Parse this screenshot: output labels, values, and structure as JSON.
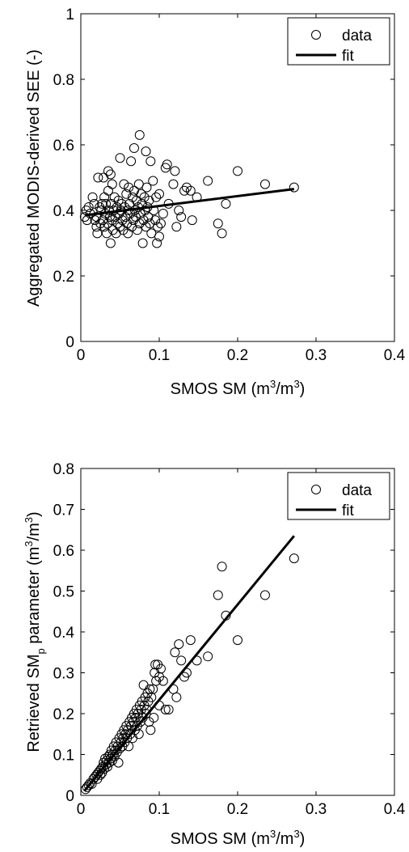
{
  "chart_data": [
    {
      "type": "scatter",
      "xlabel": "SMOS SM (m3/m3)",
      "ylabel": "Aggregated MODIS-derived SEE (-)",
      "xlim": [
        0,
        0.4
      ],
      "ylim": [
        0,
        1
      ],
      "xticks": [
        0,
        0.1,
        0.2,
        0.3,
        0.4
      ],
      "xtick_labels": [
        "0",
        "0.1",
        "0.2",
        "0.3",
        "0.4"
      ],
      "yticks": [
        0,
        0.2,
        0.4,
        0.6,
        0.8,
        1
      ],
      "ytick_labels": [
        "0",
        "0.2",
        "0.4",
        "0.6",
        "0.8",
        "1"
      ],
      "grid": false,
      "legend": {
        "position": "top-right",
        "entries": [
          "data",
          "fit"
        ]
      },
      "series": [
        {
          "name": "data",
          "marker": "circle-open",
          "points": [
            [
              0.005,
              0.38
            ],
            [
              0.007,
              0.4
            ],
            [
              0.008,
              0.37
            ],
            [
              0.01,
              0.41
            ],
            [
              0.012,
              0.39
            ],
            [
              0.015,
              0.44
            ],
            [
              0.017,
              0.42
            ],
            [
              0.018,
              0.37
            ],
            [
              0.02,
              0.38
            ],
            [
              0.02,
              0.35
            ],
            [
              0.021,
              0.33
            ],
            [
              0.022,
              0.5
            ],
            [
              0.024,
              0.41
            ],
            [
              0.025,
              0.36
            ],
            [
              0.026,
              0.4
            ],
            [
              0.027,
              0.42
            ],
            [
              0.028,
              0.37
            ],
            [
              0.029,
              0.5
            ],
            [
              0.03,
              0.35
            ],
            [
              0.03,
              0.44
            ],
            [
              0.031,
              0.39
            ],
            [
              0.032,
              0.42
            ],
            [
              0.033,
              0.33
            ],
            [
              0.034,
              0.36
            ],
            [
              0.035,
              0.52
            ],
            [
              0.035,
              0.46
            ],
            [
              0.036,
              0.4
            ],
            [
              0.037,
              0.38
            ],
            [
              0.038,
              0.51
            ],
            [
              0.038,
              0.3
            ],
            [
              0.039,
              0.42
            ],
            [
              0.04,
              0.37
            ],
            [
              0.04,
              0.48
            ],
            [
              0.041,
              0.34
            ],
            [
              0.042,
              0.4
            ],
            [
              0.043,
              0.44
            ],
            [
              0.044,
              0.38
            ],
            [
              0.045,
              0.33
            ],
            [
              0.046,
              0.41
            ],
            [
              0.047,
              0.36
            ],
            [
              0.048,
              0.43
            ],
            [
              0.049,
              0.39
            ],
            [
              0.05,
              0.56
            ],
            [
              0.05,
              0.35
            ],
            [
              0.051,
              0.4
            ],
            [
              0.052,
              0.42
            ],
            [
              0.053,
              0.37
            ],
            [
              0.054,
              0.34
            ],
            [
              0.055,
              0.48
            ],
            [
              0.056,
              0.41
            ],
            [
              0.057,
              0.38
            ],
            [
              0.058,
              0.45
            ],
            [
              0.059,
              0.36
            ],
            [
              0.06,
              0.4
            ],
            [
              0.06,
              0.33
            ],
            [
              0.061,
              0.47
            ],
            [
              0.062,
              0.42
            ],
            [
              0.063,
              0.39
            ],
            [
              0.064,
              0.55
            ],
            [
              0.065,
              0.35
            ],
            [
              0.066,
              0.44
            ],
            [
              0.067,
              0.37
            ],
            [
              0.068,
              0.59
            ],
            [
              0.068,
              0.46
            ],
            [
              0.069,
              0.4
            ],
            [
              0.07,
              0.38
            ],
            [
              0.071,
              0.43
            ],
            [
              0.072,
              0.34
            ],
            [
              0.073,
              0.41
            ],
            [
              0.074,
              0.48
            ],
            [
              0.075,
              0.63
            ],
            [
              0.075,
              0.36
            ],
            [
              0.076,
              0.39
            ],
            [
              0.077,
              0.45
            ],
            [
              0.078,
              0.42
            ],
            [
              0.079,
              0.3
            ],
            [
              0.08,
              0.37
            ],
            [
              0.081,
              0.44
            ],
            [
              0.082,
              0.4
            ],
            [
              0.083,
              0.58
            ],
            [
              0.083,
              0.35
            ],
            [
              0.084,
              0.47
            ],
            [
              0.085,
              0.41
            ],
            [
              0.086,
              0.38
            ],
            [
              0.087,
              0.43
            ],
            [
              0.088,
              0.36
            ],
            [
              0.089,
              0.55
            ],
            [
              0.09,
              0.33
            ],
            [
              0.092,
              0.49
            ],
            [
              0.093,
              0.4
            ],
            [
              0.095,
              0.37
            ],
            [
              0.096,
              0.44
            ],
            [
              0.097,
              0.3
            ],
            [
              0.098,
              0.35
            ],
            [
              0.1,
              0.45
            ],
            [
              0.1,
              0.32
            ],
            [
              0.102,
              0.36
            ],
            [
              0.105,
              0.39
            ],
            [
              0.108,
              0.53
            ],
            [
              0.11,
              0.54
            ],
            [
              0.112,
              0.42
            ],
            [
              0.118,
              0.48
            ],
            [
              0.12,
              0.52
            ],
            [
              0.122,
              0.35
            ],
            [
              0.125,
              0.4
            ],
            [
              0.128,
              0.38
            ],
            [
              0.132,
              0.46
            ],
            [
              0.135,
              0.47
            ],
            [
              0.14,
              0.46
            ],
            [
              0.142,
              0.37
            ],
            [
              0.148,
              0.44
            ],
            [
              0.162,
              0.49
            ],
            [
              0.175,
              0.36
            ],
            [
              0.18,
              0.33
            ],
            [
              0.185,
              0.42
            ],
            [
              0.2,
              0.52
            ],
            [
              0.235,
              0.48
            ],
            [
              0.272,
              0.47
            ]
          ]
        },
        {
          "name": "fit",
          "style": "line",
          "points": [
            [
              0.005,
              0.385
            ],
            [
              0.272,
              0.465
            ]
          ]
        }
      ]
    },
    {
      "type": "scatter",
      "xlabel": "SMOS SM (m3/m3)",
      "ylabel": "Retrieved SMp parameter (m3/m3)",
      "xlim": [
        0,
        0.4
      ],
      "ylim": [
        0,
        0.8
      ],
      "xticks": [
        0,
        0.1,
        0.2,
        0.3,
        0.4
      ],
      "xtick_labels": [
        "0",
        "0.1",
        "0.2",
        "0.3",
        "0.4"
      ],
      "yticks": [
        0,
        0.1,
        0.2,
        0.3,
        0.4,
        0.5,
        0.6,
        0.7,
        0.8
      ],
      "ytick_labels": [
        "0",
        "0.1",
        "0.2",
        "0.3",
        "0.4",
        "0.5",
        "0.6",
        "0.7",
        "0.8"
      ],
      "grid": false,
      "legend": {
        "position": "top-right",
        "entries": [
          "data",
          "fit"
        ]
      },
      "series": [
        {
          "name": "data",
          "marker": "circle-open",
          "points": [
            [
              0.006,
              0.015
            ],
            [
              0.008,
              0.02
            ],
            [
              0.01,
              0.025
            ],
            [
              0.012,
              0.03
            ],
            [
              0.014,
              0.028
            ],
            [
              0.016,
              0.04
            ],
            [
              0.018,
              0.045
            ],
            [
              0.02,
              0.05
            ],
            [
              0.021,
              0.04
            ],
            [
              0.022,
              0.055
            ],
            [
              0.024,
              0.06
            ],
            [
              0.025,
              0.05
            ],
            [
              0.026,
              0.065
            ],
            [
              0.027,
              0.055
            ],
            [
              0.028,
              0.07
            ],
            [
              0.029,
              0.08
            ],
            [
              0.03,
              0.065
            ],
            [
              0.031,
              0.09
            ],
            [
              0.032,
              0.075
            ],
            [
              0.033,
              0.085
            ],
            [
              0.034,
              0.07
            ],
            [
              0.035,
              0.095
            ],
            [
              0.036,
              0.08
            ],
            [
              0.037,
              0.1
            ],
            [
              0.038,
              0.09
            ],
            [
              0.039,
              0.11
            ],
            [
              0.04,
              0.085
            ],
            [
              0.041,
              0.1
            ],
            [
              0.042,
              0.12
            ],
            [
              0.043,
              0.095
            ],
            [
              0.044,
              0.11
            ],
            [
              0.045,
              0.13
            ],
            [
              0.046,
              0.105
            ],
            [
              0.047,
              0.12
            ],
            [
              0.048,
              0.08
            ],
            [
              0.049,
              0.14
            ],
            [
              0.05,
              0.115
            ],
            [
              0.051,
              0.13
            ],
            [
              0.052,
              0.15
            ],
            [
              0.053,
              0.12
            ],
            [
              0.054,
              0.14
            ],
            [
              0.055,
              0.16
            ],
            [
              0.056,
              0.13
            ],
            [
              0.057,
              0.15
            ],
            [
              0.058,
              0.17
            ],
            [
              0.059,
              0.14
            ],
            [
              0.06,
              0.16
            ],
            [
              0.061,
              0.12
            ],
            [
              0.062,
              0.18
            ],
            [
              0.063,
              0.15
            ],
            [
              0.064,
              0.17
            ],
            [
              0.065,
              0.19
            ],
            [
              0.066,
              0.14
            ],
            [
              0.067,
              0.18
            ],
            [
              0.068,
              0.2
            ],
            [
              0.069,
              0.16
            ],
            [
              0.07,
              0.19
            ],
            [
              0.071,
              0.21
            ],
            [
              0.072,
              0.17
            ],
            [
              0.073,
              0.2
            ],
            [
              0.074,
              0.15
            ],
            [
              0.075,
              0.22
            ],
            [
              0.076,
              0.18
            ],
            [
              0.077,
              0.21
            ],
            [
              0.078,
              0.23
            ],
            [
              0.079,
              0.19
            ],
            [
              0.08,
              0.27
            ],
            [
              0.081,
              0.22
            ],
            [
              0.082,
              0.24
            ],
            [
              0.083,
              0.2
            ],
            [
              0.084,
              0.21
            ],
            [
              0.085,
              0.25
            ],
            [
              0.086,
              0.23
            ],
            [
              0.087,
              0.18
            ],
            [
              0.088,
              0.26
            ],
            [
              0.089,
              0.16
            ],
            [
              0.09,
              0.24
            ],
            [
              0.092,
              0.26
            ],
            [
              0.093,
              0.19
            ],
            [
              0.094,
              0.3
            ],
            [
              0.095,
              0.32
            ],
            [
              0.096,
              0.28
            ],
            [
              0.098,
              0.32
            ],
            [
              0.1,
              0.29
            ],
            [
              0.1,
              0.22
            ],
            [
              0.102,
              0.31
            ],
            [
              0.105,
              0.28
            ],
            [
              0.108,
              0.21
            ],
            [
              0.112,
              0.21
            ],
            [
              0.118,
              0.26
            ],
            [
              0.12,
              0.35
            ],
            [
              0.122,
              0.24
            ],
            [
              0.125,
              0.37
            ],
            [
              0.128,
              0.33
            ],
            [
              0.132,
              0.29
            ],
            [
              0.135,
              0.3
            ],
            [
              0.14,
              0.38
            ],
            [
              0.148,
              0.33
            ],
            [
              0.162,
              0.34
            ],
            [
              0.175,
              0.49
            ],
            [
              0.18,
              0.56
            ],
            [
              0.185,
              0.44
            ],
            [
              0.2,
              0.38
            ],
            [
              0.235,
              0.49
            ],
            [
              0.272,
              0.58
            ]
          ]
        },
        {
          "name": "fit",
          "style": "line",
          "points": [
            [
              0.005,
              0.012
            ],
            [
              0.272,
              0.635
            ]
          ]
        }
      ]
    }
  ]
}
